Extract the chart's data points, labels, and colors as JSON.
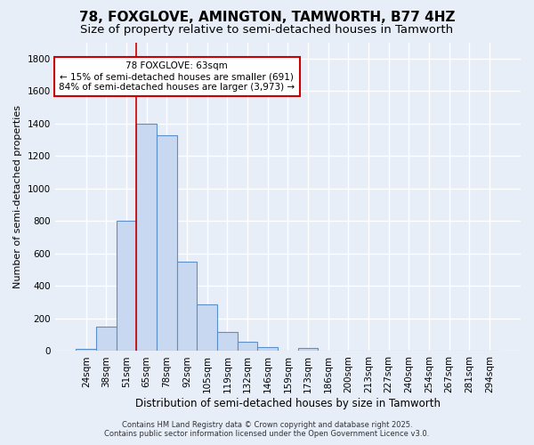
{
  "title1": "78, FOXGLOVE, AMINGTON, TAMWORTH, B77 4HZ",
  "title2": "Size of property relative to semi-detached houses in Tamworth",
  "xlabel": "Distribution of semi-detached houses by size in Tamworth",
  "ylabel": "Number of semi-detached properties",
  "categories": [
    "24sqm",
    "38sqm",
    "51sqm",
    "65sqm",
    "78sqm",
    "92sqm",
    "105sqm",
    "119sqm",
    "132sqm",
    "146sqm",
    "159sqm",
    "173sqm",
    "186sqm",
    "200sqm",
    "213sqm",
    "227sqm",
    "240sqm",
    "254sqm",
    "267sqm",
    "281sqm",
    "294sqm"
  ],
  "bar_heights": [
    15,
    150,
    800,
    1400,
    1330,
    550,
    290,
    120,
    55,
    25,
    0,
    20,
    0,
    0,
    0,
    0,
    0,
    0,
    0,
    0,
    5
  ],
  "bar_color": "#c8d8f0",
  "bar_edge_color": "#5b8fc9",
  "ylim": [
    0,
    1900
  ],
  "yticks": [
    0,
    200,
    400,
    600,
    800,
    1000,
    1200,
    1400,
    1600,
    1800
  ],
  "vline_x": 2.5,
  "vline_color": "#cc0000",
  "annotation_text": "78 FOXGLOVE: 63sqm\n← 15% of semi-detached houses are smaller (691)\n84% of semi-detached houses are larger (3,973) →",
  "annotation_box_color": "#ffffff",
  "annotation_box_edge": "#cc0000",
  "footer1": "Contains HM Land Registry data © Crown copyright and database right 2025.",
  "footer2": "Contains public sector information licensed under the Open Government Licence v3.0.",
  "bg_color": "#e8eef8",
  "plot_bg_color": "#e8eef8",
  "grid_color": "#ffffff",
  "title1_fontsize": 11,
  "title2_fontsize": 9.5,
  "xlabel_fontsize": 8.5,
  "ylabel_fontsize": 8,
  "tick_fontsize": 7.5,
  "annot_fontsize": 7.5,
  "footer_fontsize": 6
}
